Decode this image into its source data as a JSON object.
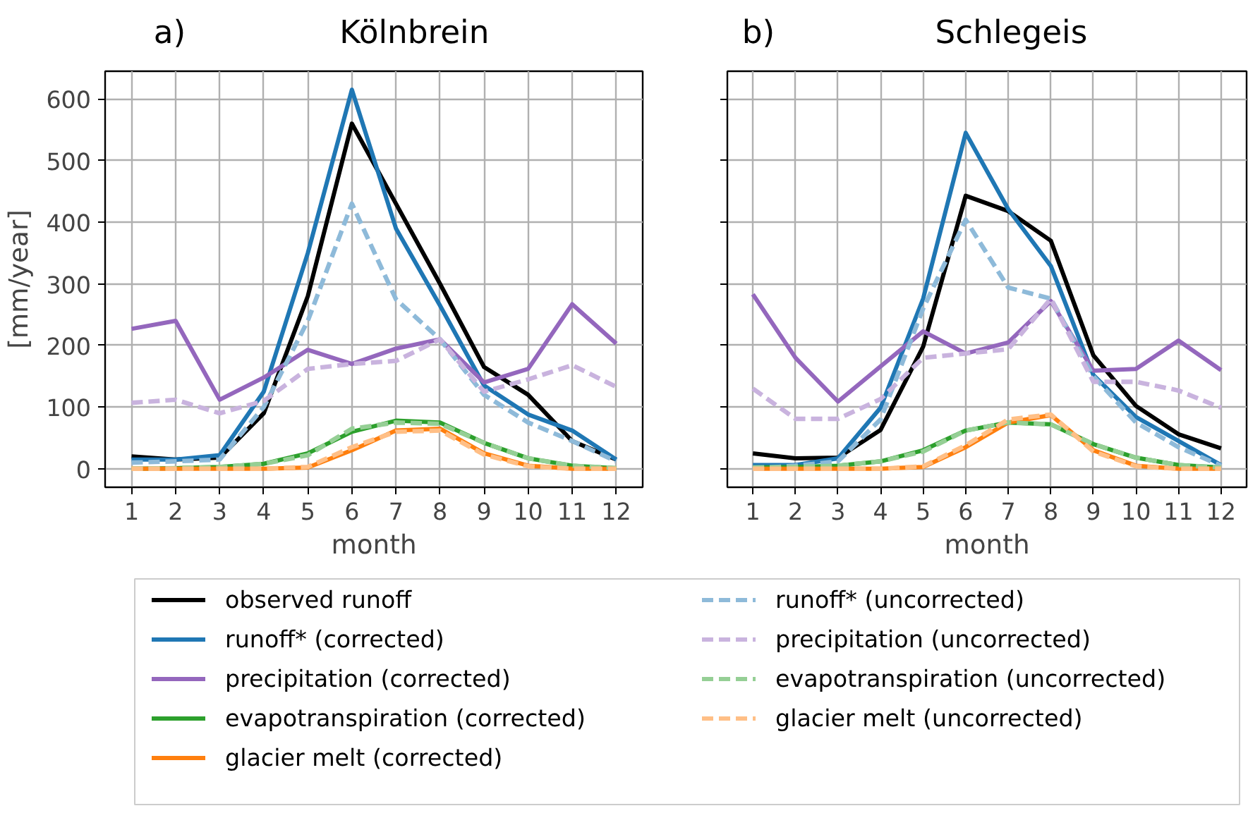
{
  "chart_data": [
    {
      "type": "line",
      "title": "Kölnbrein",
      "annotations": [
        "a)"
      ],
      "xlabel": "month",
      "ylabel": "[mm/year]",
      "x": [
        1,
        2,
        3,
        4,
        5,
        6,
        7,
        8,
        9,
        10,
        11,
        12
      ],
      "xlim": [
        0.4,
        12.6
      ],
      "xticks": [
        1,
        2,
        3,
        4,
        5,
        6,
        7,
        8,
        9,
        10,
        11,
        12
      ],
      "ylim": [
        -30,
        645
      ],
      "yticks": [
        0,
        100,
        200,
        300,
        400,
        500,
        600
      ],
      "grid": true,
      "legend": "bottom",
      "series": [
        {
          "name": "observed runoff",
          "color": "#000000",
          "line_style": "solid",
          "values": [
            20,
            15,
            18,
            90,
            280,
            560,
            430,
            300,
            165,
            120,
            45,
            15
          ]
        },
        {
          "name": "runoff* (corrected)",
          "color": "#1f77b4",
          "line_style": "solid",
          "values": [
            15,
            15,
            22,
            125,
            350,
            615,
            390,
            265,
            135,
            88,
            62,
            15
          ]
        },
        {
          "name": "precipitation (corrected)",
          "color": "#9467bd",
          "line_style": "solid",
          "values": [
            227,
            240,
            112,
            148,
            193,
            170,
            195,
            210,
            140,
            162,
            267,
            203
          ]
        },
        {
          "name": "evapotranspiration (corrected)",
          "color": "#2ca02c",
          "line_style": "solid",
          "values": [
            0,
            1,
            3,
            8,
            25,
            60,
            78,
            75,
            42,
            17,
            5,
            1
          ]
        },
        {
          "name": "glacier melt (corrected)",
          "color": "#ff7f0e",
          "line_style": "solid",
          "values": [
            0,
            0,
            0,
            0,
            2,
            30,
            62,
            65,
            25,
            5,
            0,
            0
          ]
        },
        {
          "name": "runoff* (uncorrected)",
          "color": "#8ebad9",
          "line_style": "dashed",
          "values": [
            10,
            12,
            15,
            100,
            240,
            430,
            275,
            210,
            120,
            75,
            45,
            12
          ]
        },
        {
          "name": "precipitation (uncorrected)",
          "color": "#c9b3de",
          "line_style": "dashed",
          "values": [
            107,
            112,
            90,
            110,
            162,
            170,
            175,
            210,
            125,
            145,
            168,
            133
          ]
        },
        {
          "name": "evapotranspiration (uncorrected)",
          "color": "#95cf95",
          "line_style": "dashed",
          "values": [
            0,
            1,
            3,
            8,
            22,
            65,
            75,
            73,
            42,
            17,
            5,
            1
          ]
        },
        {
          "name": "glacier melt (uncorrected)",
          "color": "#ffbf86",
          "line_style": "dashed",
          "values": [
            0,
            0,
            0,
            0,
            3,
            35,
            60,
            62,
            23,
            4,
            0,
            0
          ]
        }
      ]
    },
    {
      "type": "line",
      "title": "Schlegeis",
      "annotations": [
        "b)"
      ],
      "xlabel": "month",
      "x": [
        1,
        2,
        3,
        4,
        5,
        6,
        7,
        8,
        9,
        10,
        11,
        12
      ],
      "xlim": [
        0.4,
        12.6
      ],
      "xticks": [
        1,
        2,
        3,
        4,
        5,
        6,
        7,
        8,
        9,
        10,
        11,
        12
      ],
      "ylim": [
        -30,
        645
      ],
      "yticks": [
        0,
        100,
        200,
        300,
        400,
        500,
        600
      ],
      "tick_labels": "x",
      "grid": true,
      "series": [
        {
          "color": "#000000",
          "line_style": "solid",
          "values": [
            25,
            17,
            18,
            63,
            198,
            443,
            418,
            370,
            184,
            102,
            56,
            33
          ]
        },
        {
          "color": "#1f77b4",
          "line_style": "solid",
          "values": [
            6,
            6,
            17,
            99,
            276,
            545,
            421,
            329,
            152,
            84,
            45,
            6
          ]
        },
        {
          "color": "#9467bd",
          "line_style": "solid",
          "values": [
            283,
            180,
            109,
            166,
            223,
            187,
            205,
            272,
            159,
            162,
            208,
            160
          ]
        },
        {
          "color": "#2ca02c",
          "line_style": "solid",
          "values": [
            2,
            3,
            5,
            12,
            30,
            62,
            75,
            72,
            40,
            18,
            6,
            2
          ]
        },
        {
          "color": "#ff7f0e",
          "line_style": "solid",
          "values": [
            0,
            0,
            0,
            0,
            3,
            35,
            75,
            87,
            30,
            5,
            0,
            0
          ]
        },
        {
          "color": "#8ebad9",
          "line_style": "dashed",
          "values": [
            0,
            5,
            12,
            80,
            260,
            404,
            294,
            276,
            150,
            75,
            35,
            5
          ]
        },
        {
          "color": "#c9b3de",
          "line_style": "dashed",
          "values": [
            130,
            81,
            81,
            113,
            180,
            187,
            194,
            276,
            141,
            141,
            127,
            99
          ]
        },
        {
          "color": "#95cf95",
          "line_style": "dashed",
          "values": [
            2,
            3,
            5,
            12,
            28,
            62,
            75,
            72,
            40,
            18,
            6,
            2
          ]
        },
        {
          "color": "#ffbf86",
          "line_style": "dashed",
          "values": [
            0,
            0,
            0,
            0,
            4,
            38,
            80,
            88,
            28,
            4,
            0,
            0
          ]
        }
      ]
    }
  ]
}
